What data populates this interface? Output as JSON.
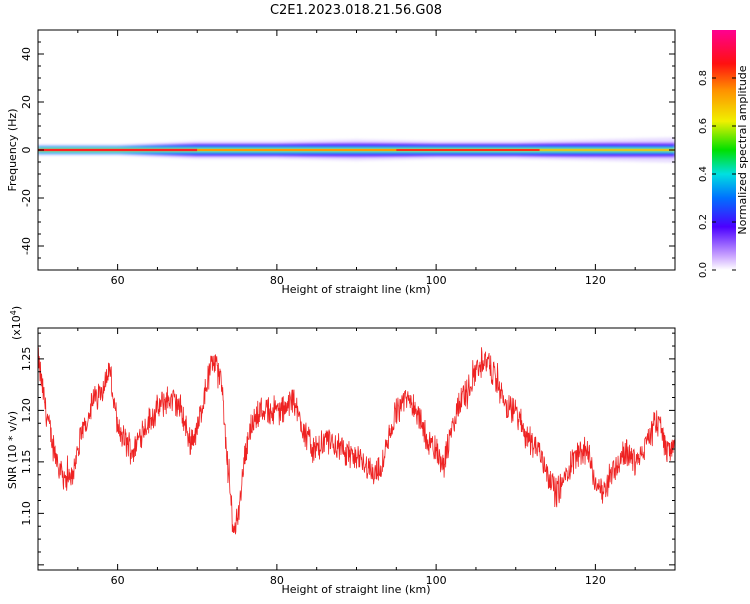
{
  "title": "C2E1.2023.018.21.56.G08",
  "colors": {
    "snr_line": "#ee2222",
    "axis": "#000000",
    "background": "#ffffff"
  },
  "chart_data": [
    {
      "type": "heatmap",
      "xlabel": "Height of straight line (km)",
      "ylabel": "Frequency (Hz)",
      "xlim": [
        50,
        130
      ],
      "ylim": [
        -50,
        50
      ],
      "x_ticks": [
        60,
        80,
        100,
        120
      ],
      "y_ticks": [
        40,
        20,
        0,
        -20,
        -40
      ],
      "colorbar": {
        "label": "Normalized spectral amplitude",
        "range": [
          0,
          1
        ],
        "ticks": [
          0.0,
          0.2,
          0.4,
          0.6,
          0.8
        ],
        "tick_labels": [
          "0.0",
          "0.2",
          "0.4",
          "0.6",
          "0.8"
        ],
        "colormap": "rainbow (white-violet-blue-cyan-green-yellow-orange-red-magenta)"
      },
      "band": {
        "center_frequency": 0,
        "half_width_by_height": [
          [
            50,
            1.5
          ],
          [
            60,
            1.5
          ],
          [
            70,
            2.5
          ],
          [
            80,
            2.5
          ],
          [
            90,
            3.0
          ],
          [
            100,
            2.5
          ],
          [
            110,
            2.5
          ],
          [
            120,
            3.0
          ],
          [
            130,
            3.5
          ]
        ],
        "peak_amplitude_note": "red/orange core at 0 Hz, strongest at 50–70 km and 95–112 km"
      }
    },
    {
      "type": "line",
      "xlabel": "Height of straight line (km)",
      "ylabel": "SNR (10 * v/v)",
      "y_scale_label": "(x10",
      "y_scale_exponent": "4",
      "y_scale_close": ")",
      "xlim": [
        50,
        130
      ],
      "ylim": [
        1.045,
        1.28
      ],
      "x_ticks": [
        60,
        80,
        100,
        120
      ],
      "y_ticks": [
        1.1,
        1.15,
        1.2,
        1.25
      ],
      "y_tick_labels": [
        "1.10",
        "1.15",
        "1.20",
        "1.25"
      ],
      "series": [
        {
          "trend": [
            [
              50,
              1.25
            ],
            [
              51,
              1.2
            ],
            [
              52,
              1.16
            ],
            [
              53,
              1.14
            ],
            [
              54,
              1.13
            ],
            [
              55,
              1.16
            ],
            [
              56,
              1.19
            ],
            [
              57,
              1.21
            ],
            [
              58,
              1.22
            ],
            [
              59,
              1.24
            ],
            [
              60,
              1.18
            ],
            [
              61,
              1.17
            ],
            [
              62,
              1.16
            ],
            [
              63,
              1.18
            ],
            [
              64,
              1.19
            ],
            [
              65,
              1.2
            ],
            [
              66,
              1.21
            ],
            [
              67,
              1.21
            ],
            [
              68,
              1.2
            ],
            [
              69,
              1.17
            ],
            [
              70,
              1.18
            ],
            [
              71,
              1.22
            ],
            [
              72,
              1.25
            ],
            [
              73,
              1.23
            ],
            [
              74,
              1.13
            ],
            [
              74.6,
              1.08
            ],
            [
              75.3,
              1.11
            ],
            [
              76,
              1.16
            ],
            [
              77,
              1.19
            ],
            [
              78,
              1.2
            ],
            [
              79,
              1.2
            ],
            [
              80,
              1.2
            ],
            [
              81,
              1.2
            ],
            [
              82,
              1.21
            ],
            [
              83,
              1.19
            ],
            [
              84,
              1.17
            ],
            [
              85,
              1.16
            ],
            [
              86,
              1.17
            ],
            [
              87,
              1.17
            ],
            [
              88,
              1.16
            ],
            [
              89,
              1.16
            ],
            [
              90,
              1.15
            ],
            [
              91,
              1.15
            ],
            [
              92,
              1.14
            ],
            [
              93,
              1.14
            ],
            [
              94,
              1.17
            ],
            [
              95,
              1.2
            ],
            [
              96,
              1.21
            ],
            [
              97,
              1.21
            ],
            [
              98,
              1.19
            ],
            [
              99,
              1.17
            ],
            [
              100,
              1.16
            ],
            [
              101,
              1.15
            ],
            [
              102,
              1.18
            ],
            [
              103,
              1.21
            ],
            [
              104,
              1.22
            ],
            [
              105,
              1.24
            ],
            [
              106,
              1.25
            ],
            [
              107,
              1.24
            ],
            [
              108,
              1.22
            ],
            [
              109,
              1.2
            ],
            [
              110,
              1.2
            ],
            [
              111,
              1.18
            ],
            [
              112,
              1.17
            ],
            [
              113,
              1.16
            ],
            [
              114,
              1.14
            ],
            [
              115,
              1.12
            ],
            [
              116,
              1.13
            ],
            [
              117,
              1.15
            ],
            [
              118,
              1.16
            ],
            [
              119,
              1.16
            ],
            [
              120,
              1.13
            ],
            [
              121,
              1.12
            ],
            [
              122,
              1.14
            ],
            [
              123,
              1.15
            ],
            [
              124,
              1.16
            ],
            [
              125,
              1.15
            ],
            [
              126,
              1.16
            ],
            [
              127,
              1.18
            ],
            [
              128,
              1.19
            ],
            [
              129,
              1.16
            ],
            [
              130,
              1.17
            ]
          ],
          "noise_amplitude": 0.012
        }
      ]
    }
  ]
}
